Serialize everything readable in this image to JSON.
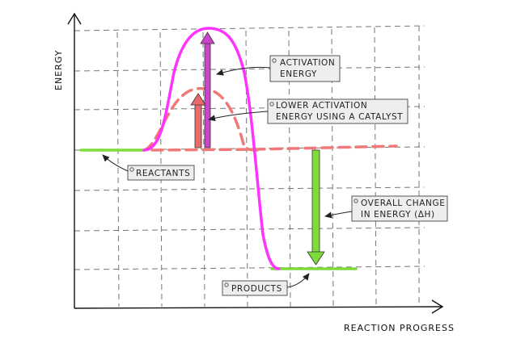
{
  "diagram": {
    "y_axis_label": "ENERGY",
    "x_axis_label": "REACTION PROGRESS",
    "callouts": {
      "activation_energy": [
        "ACTIVATION",
        "ENERGY"
      ],
      "catalyst": [
        "LOWER ACTIVATION",
        "ENERGY USING A CATALYST"
      ],
      "reactants": [
        "REACTANTS"
      ],
      "overall_change": [
        "OVERALL CHANGE",
        "IN ENERGY (ΔH)"
      ],
      "products": [
        "PRODUCTS"
      ]
    }
  },
  "colors": {
    "uncatalysed_curve": "#ff33ff",
    "catalysed_curve": "#f07878",
    "energy_level": "#7ddc3a",
    "activation_arrow": "#cc44cc",
    "catalyst_arrow": "#e86a6a",
    "delta_h_arrow": "#7ddc3a",
    "grid": "#777777",
    "callout_fill": "#eeeeee",
    "callout_stroke": "#555555"
  }
}
